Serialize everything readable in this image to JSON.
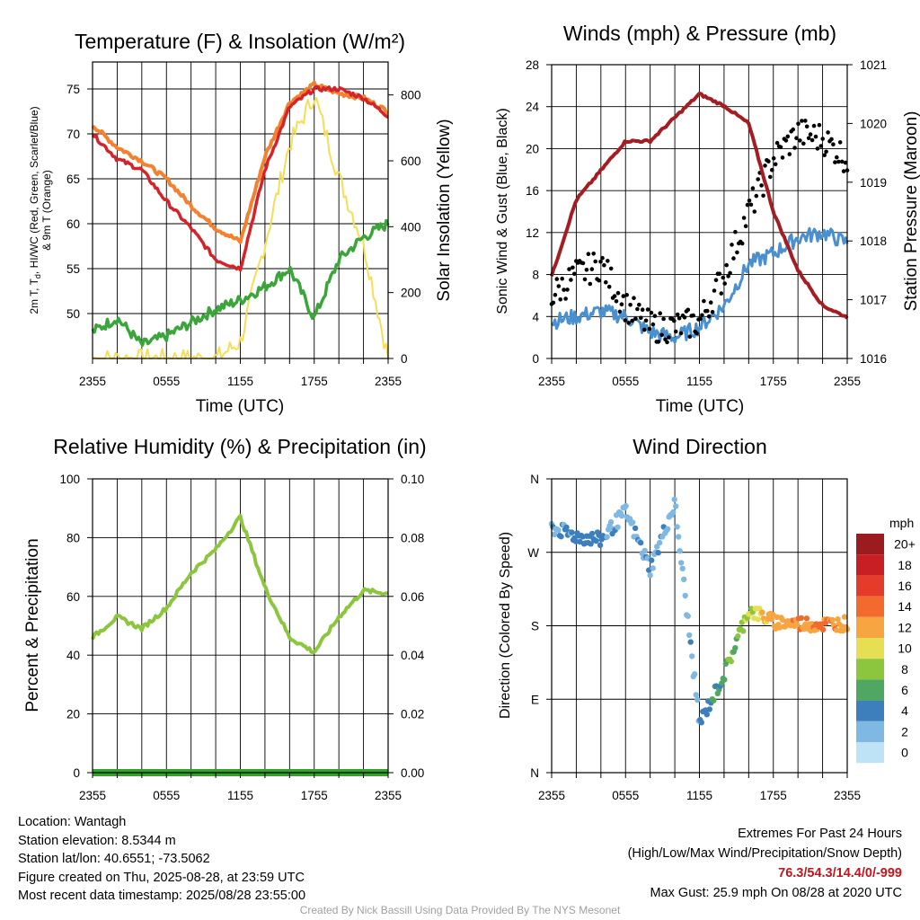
{
  "colors": {
    "temp": "#d4242b",
    "dew": "#3aa63a",
    "hiwc": "#2f52b8",
    "temp9m": "#f5802d",
    "solar": "#f7dd55",
    "wind": "#4a90cf",
    "gust": "#000000",
    "pressure": "#a41d22",
    "rh": "#8cc63f",
    "precip": "#33a02c",
    "extremes": "#c0161d"
  },
  "time_ticks": [
    "2355",
    "0555",
    "1155",
    "1755",
    "2355"
  ],
  "charts": [
    {
      "id": "temp",
      "title": "Temperature (F) & Insolation (W/m²)",
      "xlabel": "Time (UTC)",
      "ylabel_line1": "2m T, T",
      "ylabel_sub": "d",
      "ylabel_line1b": ", HI/WC (Red, Green, Scarlet/Blue)",
      "ylabel_line2": "& 9m T (Orange)",
      "y2label": "Solar Insolation (Yellow)",
      "yticks": [
        "50",
        "55",
        "60",
        "65",
        "70",
        "75"
      ],
      "y2ticks": [
        "0",
        "200",
        "400",
        "600",
        "800"
      ]
    },
    {
      "id": "wind",
      "title": "Winds (mph) & Pressure (mb)",
      "xlabel": "Time (UTC)",
      "ylabel": "Sonic Wind & Gust (Blue, Black)",
      "y2label": "Station Pressure (Maroon)",
      "yticks": [
        "0",
        "4",
        "8",
        "12",
        "16",
        "20",
        "24",
        "28"
      ],
      "y2ticks": [
        "1016",
        "1017",
        "1018",
        "1019",
        "1020",
        "1021"
      ]
    },
    {
      "id": "rh",
      "title": "Relative Humidity (%) & Precipitation (in)",
      "ylabel": "Percent & Precipitation",
      "yticks": [
        "0",
        "20",
        "40",
        "60",
        "80",
        "100"
      ],
      "y2ticks": [
        "0.00",
        "0.02",
        "0.04",
        "0.06",
        "0.08",
        "0.10"
      ]
    },
    {
      "id": "dir",
      "title": "Wind Direction",
      "ylabel": "Direction (Colored By Speed)",
      "yticks": [
        "N",
        "E",
        "S",
        "W",
        "N"
      ],
      "legend_title": "mph",
      "legend_labels": [
        "20+",
        "18",
        "16",
        "14",
        "12",
        "10",
        "8",
        "6",
        "4",
        "2",
        "0"
      ],
      "legend_colors": [
        "#9b1b1e",
        "#c81f25",
        "#e43b2a",
        "#f26a2e",
        "#f7a541",
        "#e6df54",
        "#8cc63f",
        "#4fa761",
        "#3d7fbd",
        "#7fb8e3",
        "#bfe3f6"
      ]
    }
  ],
  "chart_data": [
    {
      "type": "line",
      "title": "Temperature (F) & Insolation (W/m²)",
      "xlabel": "Time (UTC)",
      "x": [
        "2355",
        "0155",
        "0355",
        "0555",
        "0755",
        "0955",
        "1155",
        "1355",
        "1555",
        "1755",
        "1955",
        "2155",
        "2355"
      ],
      "ylim": [
        45,
        78
      ],
      "y2lim": [
        0,
        900
      ],
      "series": [
        {
          "name": "2m T",
          "axis": "left",
          "values": [
            70.0,
            67.2,
            66.0,
            62.5,
            59.5,
            56.0,
            55.0,
            66.0,
            73.0,
            75.0,
            75.0,
            74.0,
            72.0
          ]
        },
        {
          "name": "9m T",
          "axis": "left",
          "values": [
            71.0,
            68.5,
            67.0,
            65.0,
            62.0,
            59.5,
            58.0,
            67.5,
            73.5,
            75.5,
            74.5,
            74.0,
            72.5
          ]
        },
        {
          "name": "Td",
          "axis": "left",
          "values": [
            48.0,
            49.5,
            46.5,
            47.5,
            49.0,
            50.5,
            51.5,
            53.0,
            55.0,
            49.5,
            56.0,
            58.5,
            60.0
          ]
        },
        {
          "name": "Solar Insolation",
          "axis": "right",
          "values": [
            0,
            0,
            0,
            0,
            0,
            0,
            50,
            350,
            650,
            800,
            550,
            350,
            0
          ]
        }
      ]
    },
    {
      "type": "line",
      "title": "Winds (mph) & Pressure (mb)",
      "xlabel": "Time (UTC)",
      "x": [
        "2355",
        "0155",
        "0355",
        "0555",
        "0755",
        "0955",
        "1155",
        "1355",
        "1555",
        "1755",
        "1955",
        "2155",
        "2355"
      ],
      "ylim": [
        0,
        28
      ],
      "y2lim": [
        1016,
        1021
      ],
      "series": [
        {
          "name": "Sonic Wind",
          "axis": "left",
          "values": [
            3.5,
            4.0,
            4.5,
            4.0,
            2.5,
            2.0,
            3.0,
            5.0,
            9.0,
            10.0,
            11.5,
            12.0,
            11.0
          ]
        },
        {
          "name": "Gust",
          "axis": "left",
          "values": [
            6.0,
            8.0,
            9.0,
            5.0,
            3.0,
            3.0,
            3.5,
            8.0,
            14.0,
            19.0,
            21.5,
            21.0,
            19.0
          ]
        },
        {
          "name": "Station Pressure",
          "axis": "right",
          "values": [
            1017.4,
            1018.7,
            1019.2,
            1019.7,
            1019.7,
            1020.1,
            1020.5,
            1020.3,
            1020.0,
            1018.5,
            1017.5,
            1016.9,
            1016.7
          ]
        }
      ]
    },
    {
      "type": "line",
      "title": "Relative Humidity (%) & Precipitation (in)",
      "x": [
        "2355",
        "0155",
        "0355",
        "0555",
        "0755",
        "0955",
        "1155",
        "1355",
        "1555",
        "1755",
        "1955",
        "2155",
        "2355"
      ],
      "ylim": [
        0,
        100
      ],
      "y2lim": [
        0,
        0.1
      ],
      "series": [
        {
          "name": "Relative Humidity",
          "axis": "left",
          "values": [
            46,
            53,
            49,
            56,
            68,
            76,
            87,
            63,
            46,
            41,
            53,
            62,
            61
          ]
        },
        {
          "name": "Precipitation",
          "axis": "right",
          "values": [
            0,
            0,
            0,
            0,
            0,
            0,
            0,
            0,
            0,
            0,
            0,
            0,
            0
          ]
        }
      ]
    },
    {
      "type": "scatter",
      "title": "Wind Direction",
      "x": [
        "2355",
        "0155",
        "0355",
        "0555",
        "0755",
        "0955",
        "1155",
        "1355",
        "1555",
        "1755",
        "1955",
        "2155",
        "2355"
      ],
      "ylim": [
        0,
        360
      ],
      "yticklabels": [
        "N",
        "E",
        "S",
        "W",
        "N"
      ],
      "series": [
        {
          "name": "Direction",
          "values": [
            300,
            290,
            285,
            320,
            250,
            330,
            60,
            120,
            200,
            185,
            183,
            182,
            183
          ]
        },
        {
          "name": "Speed",
          "values": [
            3,
            4,
            4,
            2,
            3,
            2,
            3,
            6,
            9,
            12,
            13,
            13,
            12
          ]
        }
      ]
    }
  ],
  "footer": {
    "location": "Location: Wantagh",
    "elevation": "Station elevation: 8.5344 m",
    "latlon": "Station lat/lon: 40.6551; -73.5062",
    "created": "Figure created on Thu, 2025-08-28, at 23:59 UTC",
    "recent": "Most recent data timestamp: 2025/08/28 23:55:00",
    "extremes_title": "Extremes For Past 24 Hours",
    "extremes_sub": "(High/Low/Max Wind/Precipitation/Snow Depth)",
    "extremes_values": "76.3/54.3/14.4/0/-999",
    "max_gust": "Max Gust: 25.9 mph On 08/28 at 2020 UTC",
    "credit": "Created By Nick Bassill Using Data Provided By The NYS Mesonet"
  }
}
